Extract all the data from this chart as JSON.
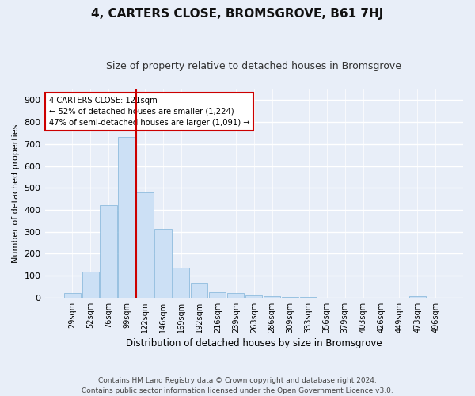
{
  "title": "4, CARTERS CLOSE, BROMSGROVE, B61 7HJ",
  "subtitle": "Size of property relative to detached houses in Bromsgrove",
  "xlabel": "Distribution of detached houses by size in Bromsgrove",
  "ylabel": "Number of detached properties",
  "bin_labels": [
    "29sqm",
    "52sqm",
    "76sqm",
    "99sqm",
    "122sqm",
    "146sqm",
    "169sqm",
    "192sqm",
    "216sqm",
    "239sqm",
    "263sqm",
    "286sqm",
    "309sqm",
    "333sqm",
    "356sqm",
    "379sqm",
    "403sqm",
    "426sqm",
    "449sqm",
    "473sqm",
    "496sqm"
  ],
  "bar_values": [
    20,
    120,
    420,
    730,
    480,
    315,
    135,
    68,
    25,
    20,
    10,
    5,
    3,
    2,
    1,
    0,
    0,
    0,
    0,
    8,
    0
  ],
  "bar_color": "#cce0f5",
  "bar_edge_color": "#7fb3d9",
  "subject_line_color": "#cc0000",
  "annotation_text": "4 CARTERS CLOSE: 121sqm\n← 52% of detached houses are smaller (1,224)\n47% of semi-detached houses are larger (1,091) →",
  "annotation_box_color": "#cc0000",
  "footer": "Contains HM Land Registry data © Crown copyright and database right 2024.\nContains public sector information licensed under the Open Government Licence v3.0.",
  "ylim": [
    0,
    950
  ],
  "yticks": [
    0,
    100,
    200,
    300,
    400,
    500,
    600,
    700,
    800,
    900
  ],
  "bg_color": "#e8eef8",
  "plot_bg_color": "#e8eef8",
  "grid_color": "#ffffff",
  "title_fontsize": 11,
  "subtitle_fontsize": 9
}
